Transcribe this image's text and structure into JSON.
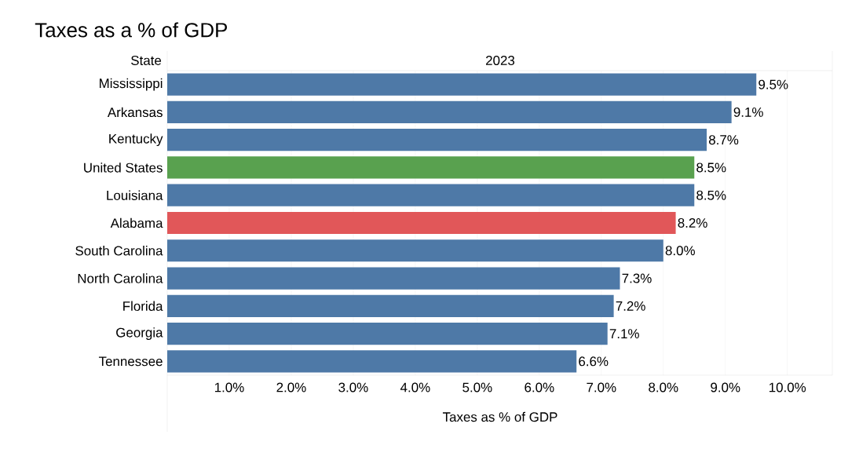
{
  "chart_data": {
    "type": "bar",
    "orientation": "horizontal",
    "title": "Taxes as a % of GDP",
    "subtitle": "2023",
    "ylabel": "State",
    "xlabel": "Taxes as % of GDP",
    "categories": [
      "Mississippi",
      "Arkansas",
      "Kentucky",
      "United States",
      "Louisiana",
      "Alabama",
      "South Carolina",
      "North Carolina",
      "Florida",
      "Georgia",
      "Tennessee"
    ],
    "values": [
      9.5,
      9.1,
      8.7,
      8.5,
      8.5,
      8.2,
      8.0,
      7.3,
      7.2,
      7.1,
      6.6
    ],
    "value_labels": [
      "9.5%",
      "9.1%",
      "8.7%",
      "8.5%",
      "8.5%",
      "8.2%",
      "8.0%",
      "7.3%",
      "7.2%",
      "7.1%",
      "6.6%"
    ],
    "colors": [
      "#4e79a7",
      "#4e79a7",
      "#4e79a7",
      "#59a14f",
      "#4e79a7",
      "#e15759",
      "#4e79a7",
      "#4e79a7",
      "#4e79a7",
      "#4e79a7",
      "#4e79a7"
    ],
    "xlim": [
      0,
      10.7
    ],
    "xticks": [
      {
        "value": 1,
        "label": "1.0%"
      },
      {
        "value": 2,
        "label": "2.0%"
      },
      {
        "value": 3,
        "label": "3.0%"
      },
      {
        "value": 4,
        "label": "4.0%"
      },
      {
        "value": 5,
        "label": "5.0%"
      },
      {
        "value": 6,
        "label": "6.0%"
      },
      {
        "value": 7,
        "label": "7.0%"
      },
      {
        "value": 8,
        "label": "8.0%"
      },
      {
        "value": 9,
        "label": "9.0%"
      },
      {
        "value": 10,
        "label": "10.0%"
      }
    ],
    "grid": "x"
  }
}
